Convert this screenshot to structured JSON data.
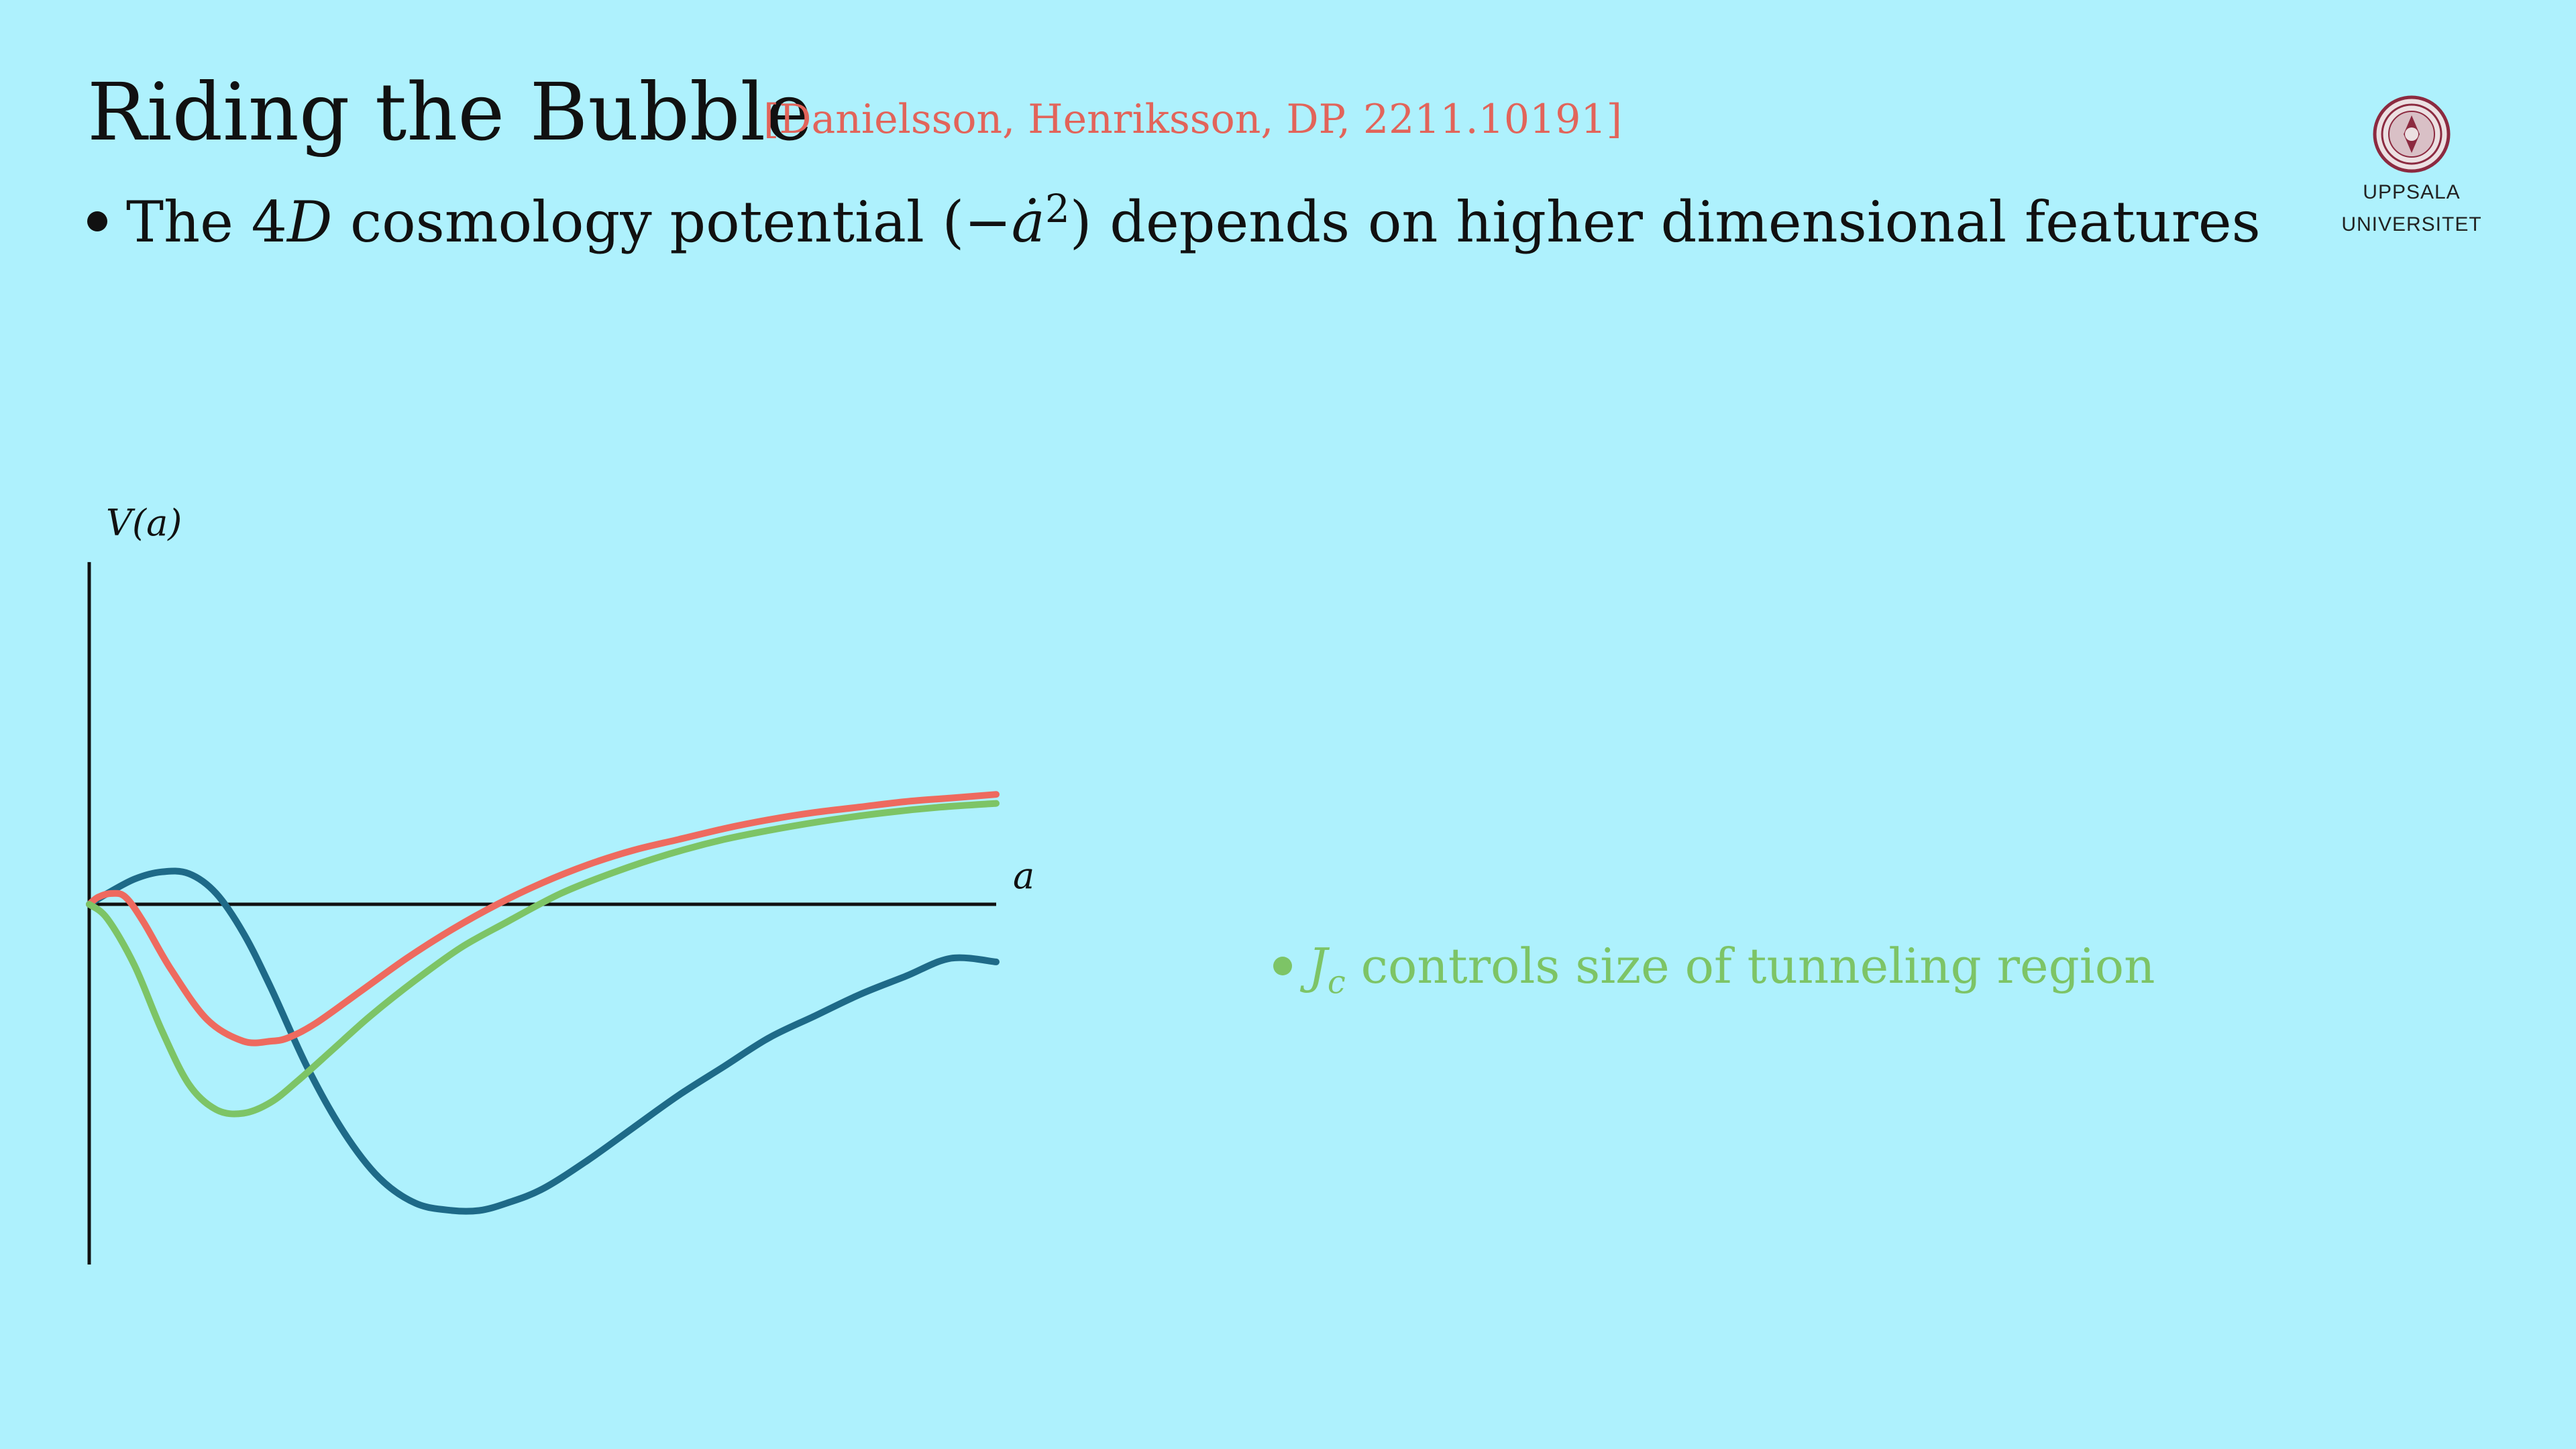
{
  "slide": {
    "title": "Riding the Bubble",
    "reference": "[Danielsson, Henriksson, DP, 2211.10191]",
    "bullet_pre": "The ",
    "bullet_4": "4",
    "bullet_D": "D",
    "bullet_mid": " cosmology potential (−",
    "bullet_adot": "ȧ",
    "bullet_exp": "2",
    "bullet_post": ") depends on higher dimensional features",
    "note_J": "J",
    "note_c": "c",
    "note_text": " controls size of tunneling region",
    "note_color": "#7dc466"
  },
  "logo": {
    "line1": "UPPSALA",
    "line2": "UNIVERSITET",
    "icon": "uppsala-university-seal-icon"
  },
  "chart_data": {
    "type": "line",
    "title": "",
    "xlabel": "a",
    "ylabel": "V(a)",
    "grid": false,
    "xlim": [
      0,
      1
    ],
    "ylim": [
      -1,
      0.95
    ],
    "series": [
      {
        "color": "#1e6a88",
        "x": [
          0,
          0.02,
          0.05,
          0.08,
          0.11,
          0.14,
          0.17,
          0.2,
          0.24,
          0.28,
          0.32,
          0.36,
          0.4,
          0.43,
          0.46,
          0.5,
          0.55,
          0.6,
          0.65,
          0.7,
          0.75,
          0.8,
          0.85,
          0.9,
          0.95,
          1.0
        ],
        "y": [
          0,
          0.03,
          0.07,
          0.09,
          0.085,
          0.03,
          -0.08,
          -0.23,
          -0.45,
          -0.63,
          -0.76,
          -0.83,
          -0.85,
          -0.85,
          -0.83,
          -0.79,
          -0.71,
          -0.62,
          -0.53,
          -0.45,
          -0.37,
          -0.31,
          -0.25,
          -0.2,
          -0.15,
          -0.16
        ]
      },
      {
        "color": "#ee6a5f",
        "x": [
          0,
          0.01,
          0.025,
          0.04,
          0.06,
          0.09,
          0.13,
          0.17,
          0.2,
          0.22,
          0.25,
          0.3,
          0.35,
          0.4,
          0.45,
          0.5,
          0.55,
          0.6,
          0.65,
          0.7,
          0.75,
          0.8,
          0.85,
          0.9,
          0.95,
          1.0
        ],
        "y": [
          0,
          0.02,
          0.03,
          0.02,
          -0.05,
          -0.18,
          -0.32,
          -0.38,
          -0.38,
          -0.37,
          -0.33,
          -0.24,
          -0.15,
          -0.07,
          0.0,
          0.06,
          0.11,
          0.15,
          0.18,
          0.21,
          0.235,
          0.255,
          0.27,
          0.285,
          0.295,
          0.305
        ]
      },
      {
        "color": "#7dc466",
        "x": [
          0,
          0.02,
          0.05,
          0.08,
          0.11,
          0.14,
          0.17,
          0.2,
          0.23,
          0.27,
          0.31,
          0.36,
          0.41,
          0.46,
          0.52,
          0.58,
          0.64,
          0.7,
          0.76,
          0.82,
          0.88,
          0.94,
          1.0
        ],
        "y": [
          0,
          -0.04,
          -0.17,
          -0.35,
          -0.5,
          -0.57,
          -0.58,
          -0.55,
          -0.49,
          -0.4,
          -0.31,
          -0.21,
          -0.12,
          -0.05,
          0.03,
          0.09,
          0.14,
          0.18,
          0.21,
          0.235,
          0.255,
          0.27,
          0.28
        ]
      }
    ]
  }
}
